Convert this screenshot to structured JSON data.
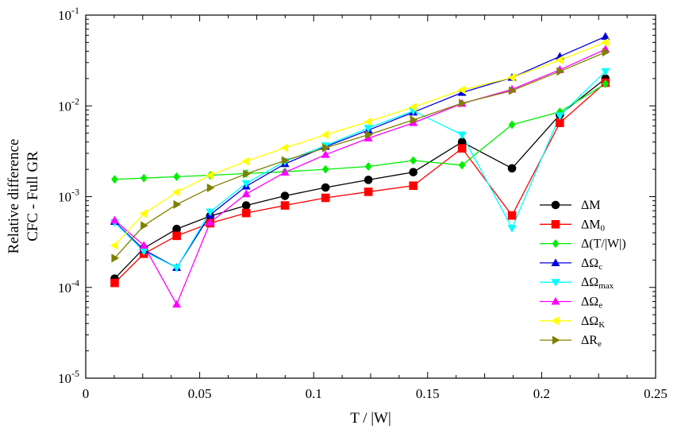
{
  "chart_data": {
    "type": "line",
    "xlabel": "T / |W|",
    "ylabel_lines": [
      "Relative difference",
      "CFC - Full GR"
    ],
    "xlim": [
      0,
      0.25
    ],
    "ylim": [
      1e-05,
      0.1
    ],
    "yscale": "log",
    "grid": false,
    "legend_position": "right",
    "x_ticks": [
      {
        "value": 0,
        "label": "0"
      },
      {
        "value": 0.05,
        "label": "0.05"
      },
      {
        "value": 0.1,
        "label": "0.1"
      },
      {
        "value": 0.15,
        "label": "0.15"
      },
      {
        "value": 0.2,
        "label": "0.2"
      },
      {
        "value": 0.25,
        "label": "0.25"
      }
    ],
    "y_ticks": [
      {
        "value": 1e-05,
        "base": "10",
        "exp": "-5"
      },
      {
        "value": 0.0001,
        "base": "10",
        "exp": "-4"
      },
      {
        "value": 0.001,
        "base": "10",
        "exp": "-3"
      },
      {
        "value": 0.01,
        "base": "10",
        "exp": "-2"
      },
      {
        "value": 0.1,
        "base": "10",
        "exp": "-1"
      }
    ],
    "x": [
      0.0127,
      0.0255,
      0.0399,
      0.0546,
      0.0704,
      0.0874,
      0.1052,
      0.124,
      0.1437,
      0.1651,
      0.187,
      0.208,
      0.228
    ],
    "series": [
      {
        "name_main": "ΔM",
        "name_sub": "",
        "color": "#000000",
        "marker": "circle",
        "values": [
          0.000125,
          0.00027,
          0.00044,
          0.00061,
          0.0008,
          0.00102,
          0.00126,
          0.00153,
          0.00186,
          0.004,
          0.00205,
          0.008,
          0.02
        ]
      },
      {
        "name_main": "ΔM",
        "name_sub": "0",
        "color": "#ff0000",
        "marker": "square",
        "values": [
          0.000112,
          0.000235,
          0.00037,
          0.00051,
          0.00066,
          0.0008,
          0.00097,
          0.00113,
          0.00132,
          0.0034,
          0.00062,
          0.0065,
          0.018
        ]
      },
      {
        "name_main": "Δ(T/|W|)",
        "name_sub": "",
        "color": "#00ee00",
        "marker": "diamond",
        "values": [
          0.00155,
          0.0016,
          0.00166,
          0.00172,
          0.0018,
          0.00188,
          0.002,
          0.00215,
          0.0025,
          0.00222,
          0.0062,
          0.0086,
          0.0175
        ]
      },
      {
        "name_main": "ΔΩ",
        "name_sub": "c",
        "color": "#0000dd",
        "marker": "triangle-up",
        "values": [
          0.00053,
          0.00026,
          0.000165,
          0.00063,
          0.0013,
          0.0023,
          0.00355,
          0.0054,
          0.0085,
          0.014,
          0.0205,
          0.035,
          0.058
        ]
      },
      {
        "name_main": "ΔΩ",
        "name_sub": "max",
        "color": "#00ffff",
        "marker": "triangle-down",
        "values": [
          0.00052,
          0.00025,
          0.000165,
          0.00068,
          0.0014,
          0.00245,
          0.00365,
          0.0057,
          0.0088,
          0.0048,
          0.00045,
          0.0078,
          0.024
        ]
      },
      {
        "name_main": "ΔΩ",
        "name_sub": "e",
        "color": "#ff00ff",
        "marker": "triangle-up",
        "values": [
          0.00055,
          0.00029,
          6.5e-05,
          0.00052,
          0.00107,
          0.00185,
          0.0029,
          0.0044,
          0.0065,
          0.0106,
          0.0152,
          0.025,
          0.042
        ]
      },
      {
        "name_main": "ΔΩ",
        "name_sub": "K",
        "color": "#ffff00",
        "marker": "triangle-left",
        "values": [
          0.00029,
          0.00065,
          0.00112,
          0.00172,
          0.00245,
          0.00345,
          0.0048,
          0.0067,
          0.0097,
          0.015,
          0.0205,
          0.032,
          0.05
        ]
      },
      {
        "name_main": "ΔR",
        "name_sub": "e",
        "color": "#808000",
        "marker": "triangle-right",
        "values": [
          0.00021,
          0.00048,
          0.00082,
          0.00125,
          0.00178,
          0.0025,
          0.00345,
          0.0048,
          0.007,
          0.0107,
          0.0147,
          0.024,
          0.039
        ]
      }
    ]
  }
}
